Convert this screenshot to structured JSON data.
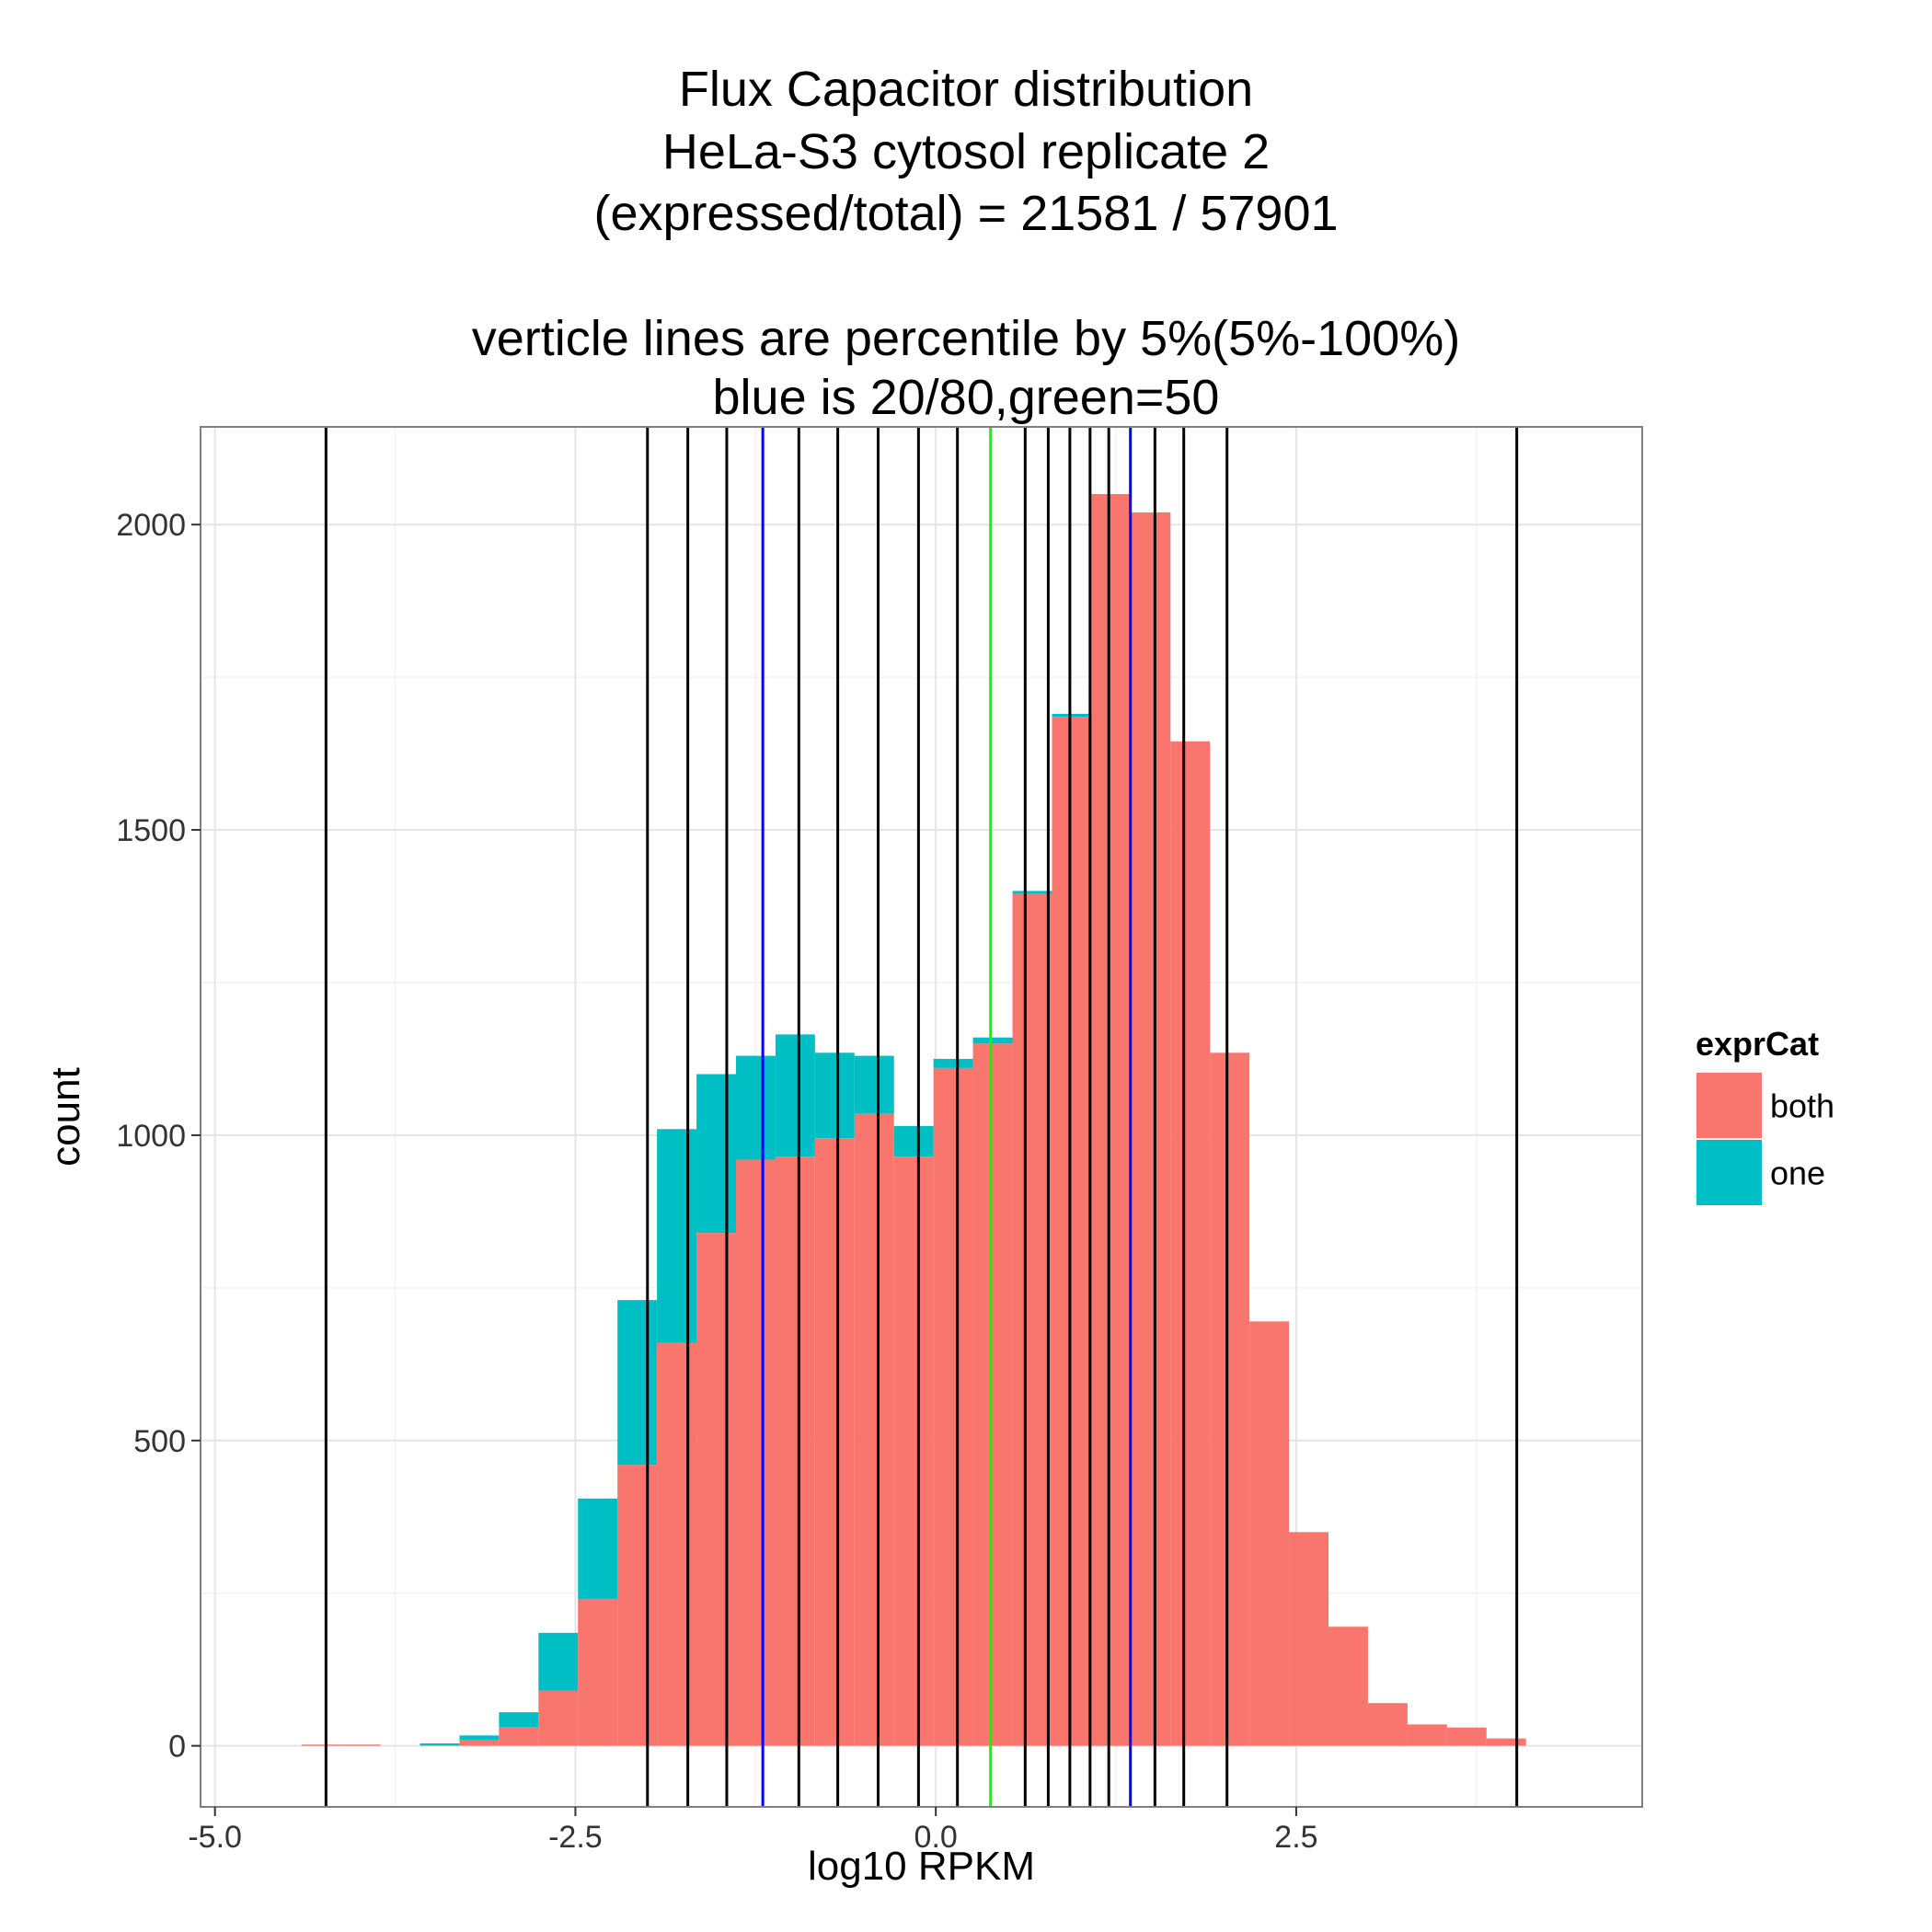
{
  "chart_data": {
    "type": "bar",
    "subtype": "stacked histogram",
    "title_lines": [
      "Flux Capacitor distribution",
      "HeLa-S3 cytosol replicate 2",
      "(expressed/total) = 21581 / 57901",
      "",
      "verticle lines are percentile by 5%(5%-100%)",
      "blue is 20/80,green=50"
    ],
    "xlabel": "log10 RPKM",
    "ylabel": "count",
    "xlim": [
      -5.1,
      4.9
    ],
    "ylim": [
      -100,
      2160
    ],
    "x_ticks": [
      -5.0,
      -2.5,
      0.0,
      2.5
    ],
    "x_tick_labels": [
      "-5.0",
      "-2.5",
      "0.0",
      "2.5"
    ],
    "y_ticks": [
      0,
      500,
      1000,
      1500,
      2000
    ],
    "y_tick_labels": [
      "0",
      "500",
      "1000",
      "1500",
      "2000"
    ],
    "grid": true,
    "bin_width": 0.274,
    "bins_left_edge": [
      -4.4,
      -4.126,
      -3.852,
      -3.578,
      -3.304,
      -3.03,
      -2.756,
      -2.482,
      -2.208,
      -1.934,
      -1.66,
      -1.386,
      -1.112,
      -0.838,
      -0.564,
      -0.29,
      -0.016,
      0.258,
      0.532,
      0.806,
      1.08,
      1.354,
      1.628,
      1.902,
      2.176,
      2.45,
      2.724,
      2.998,
      3.272,
      3.546,
      3.82
    ],
    "series": [
      {
        "name": "both",
        "color": "#F8766D",
        "values": [
          2,
          2,
          0,
          1,
          10,
          30,
          90,
          240,
          460,
          660,
          840,
          960,
          965,
          995,
          1035,
          965,
          1110,
          1150,
          1395,
          1685,
          2050,
          2020,
          1645,
          1135,
          695,
          350,
          195,
          70,
          35,
          30,
          12
        ]
      },
      {
        "name": "one",
        "color": "#00BFC4",
        "values": [
          0,
          0,
          0,
          3,
          7,
          25,
          95,
          165,
          270,
          350,
          260,
          170,
          200,
          140,
          95,
          50,
          15,
          10,
          5,
          5,
          0,
          0,
          0,
          0,
          0,
          0,
          0,
          0,
          0,
          0,
          0
        ]
      }
    ],
    "percentile_lines": {
      "black": [
        -4.23,
        -2.0,
        -1.72,
        -1.45,
        -0.95,
        -0.68,
        -0.4,
        -0.12,
        0.15,
        0.62,
        0.78,
        0.93,
        1.07,
        1.2,
        1.52,
        1.72,
        2.02,
        4.03
      ],
      "blue": [
        -1.2,
        1.35
      ],
      "green": [
        0.38
      ]
    },
    "legend": {
      "title": "exprCat",
      "position": "right",
      "entries": [
        "both",
        "one"
      ]
    }
  }
}
